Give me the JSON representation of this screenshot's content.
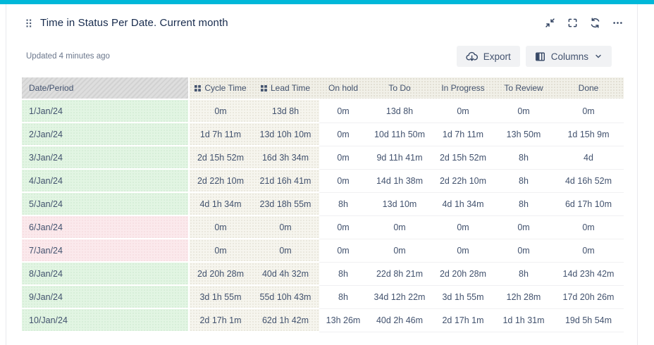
{
  "colors": {
    "accent_bar": "#00b8d9",
    "title_text": "#172b4d",
    "icon_navy": "#344563",
    "cell_text": "#42526e",
    "muted_text": "#6b778c",
    "button_bg": "#f1f2f4",
    "green_cell": "#e2f5e3",
    "pink_cell": "#fbe9ec",
    "beige_cell": "#f6f5ee",
    "header_beige": "#f1f0e8",
    "header_gray_light": "#dedede",
    "header_gray_dark": "#d2d2d2"
  },
  "widget": {
    "title": "Time in Status Per Date. Current month",
    "updated_text": "Updated 4 minutes ago",
    "header_icons": [
      "collapse-icon",
      "fullscreen-icon",
      "refresh-icon",
      "more-icon"
    ],
    "toolbar": {
      "export_label": "Export",
      "columns_label": "Columns"
    }
  },
  "table": {
    "columns": [
      "Date/Period",
      "Cycle Time",
      "Lead Time",
      "On hold",
      "To Do",
      "In Progress",
      "To Review",
      "Done"
    ],
    "grip_columns": [
      "Cycle Time",
      "Lead Time"
    ],
    "rows": [
      {
        "date": "1/Jan/24",
        "weekend": false,
        "values": [
          "0m",
          "13d 8h",
          "0m",
          "13d 8h",
          "0m",
          "0m",
          "0m"
        ]
      },
      {
        "date": "2/Jan/24",
        "weekend": false,
        "values": [
          "1d 7h 11m",
          "13d 10h 10m",
          "0m",
          "10d 11h 50m",
          "1d 7h 11m",
          "13h 50m",
          "1d 15h 9m"
        ]
      },
      {
        "date": "3/Jan/24",
        "weekend": false,
        "values": [
          "2d 15h 52m",
          "16d 3h 34m",
          "0m",
          "9d 11h 41m",
          "2d 15h 52m",
          "8h",
          "4d"
        ]
      },
      {
        "date": "4/Jan/24",
        "weekend": false,
        "values": [
          "2d 22h 10m",
          "21d 16h 41m",
          "0m",
          "14d 1h 38m",
          "2d 22h 10m",
          "8h",
          "4d 16h 52m"
        ]
      },
      {
        "date": "5/Jan/24",
        "weekend": false,
        "values": [
          "4d 1h 34m",
          "23d 18h 55m",
          "8h",
          "13d 10m",
          "4d 1h 34m",
          "8h",
          "6d 17h 10m"
        ]
      },
      {
        "date": "6/Jan/24",
        "weekend": true,
        "values": [
          "0m",
          "0m",
          "0m",
          "0m",
          "0m",
          "0m",
          "0m"
        ]
      },
      {
        "date": "7/Jan/24",
        "weekend": true,
        "values": [
          "0m",
          "0m",
          "0m",
          "0m",
          "0m",
          "0m",
          "0m"
        ]
      },
      {
        "date": "8/Jan/24",
        "weekend": false,
        "values": [
          "2d 20h 28m",
          "40d 4h 32m",
          "8h",
          "22d 8h 21m",
          "2d 20h 28m",
          "8h",
          "14d 23h 42m"
        ]
      },
      {
        "date": "9/Jan/24",
        "weekend": false,
        "values": [
          "3d 1h 55m",
          "55d 10h 43m",
          "8h",
          "34d 12h 22m",
          "3d 1h 55m",
          "12h 28m",
          "17d 20h 26m"
        ]
      },
      {
        "date": "10/Jan/24",
        "weekend": false,
        "values": [
          "2d 17h 1m",
          "62d 1h 42m",
          "13h 26m",
          "40d 2h 46m",
          "2d 17h 1m",
          "1d 1h 31m",
          "19d 5h 54m"
        ]
      }
    ]
  }
}
